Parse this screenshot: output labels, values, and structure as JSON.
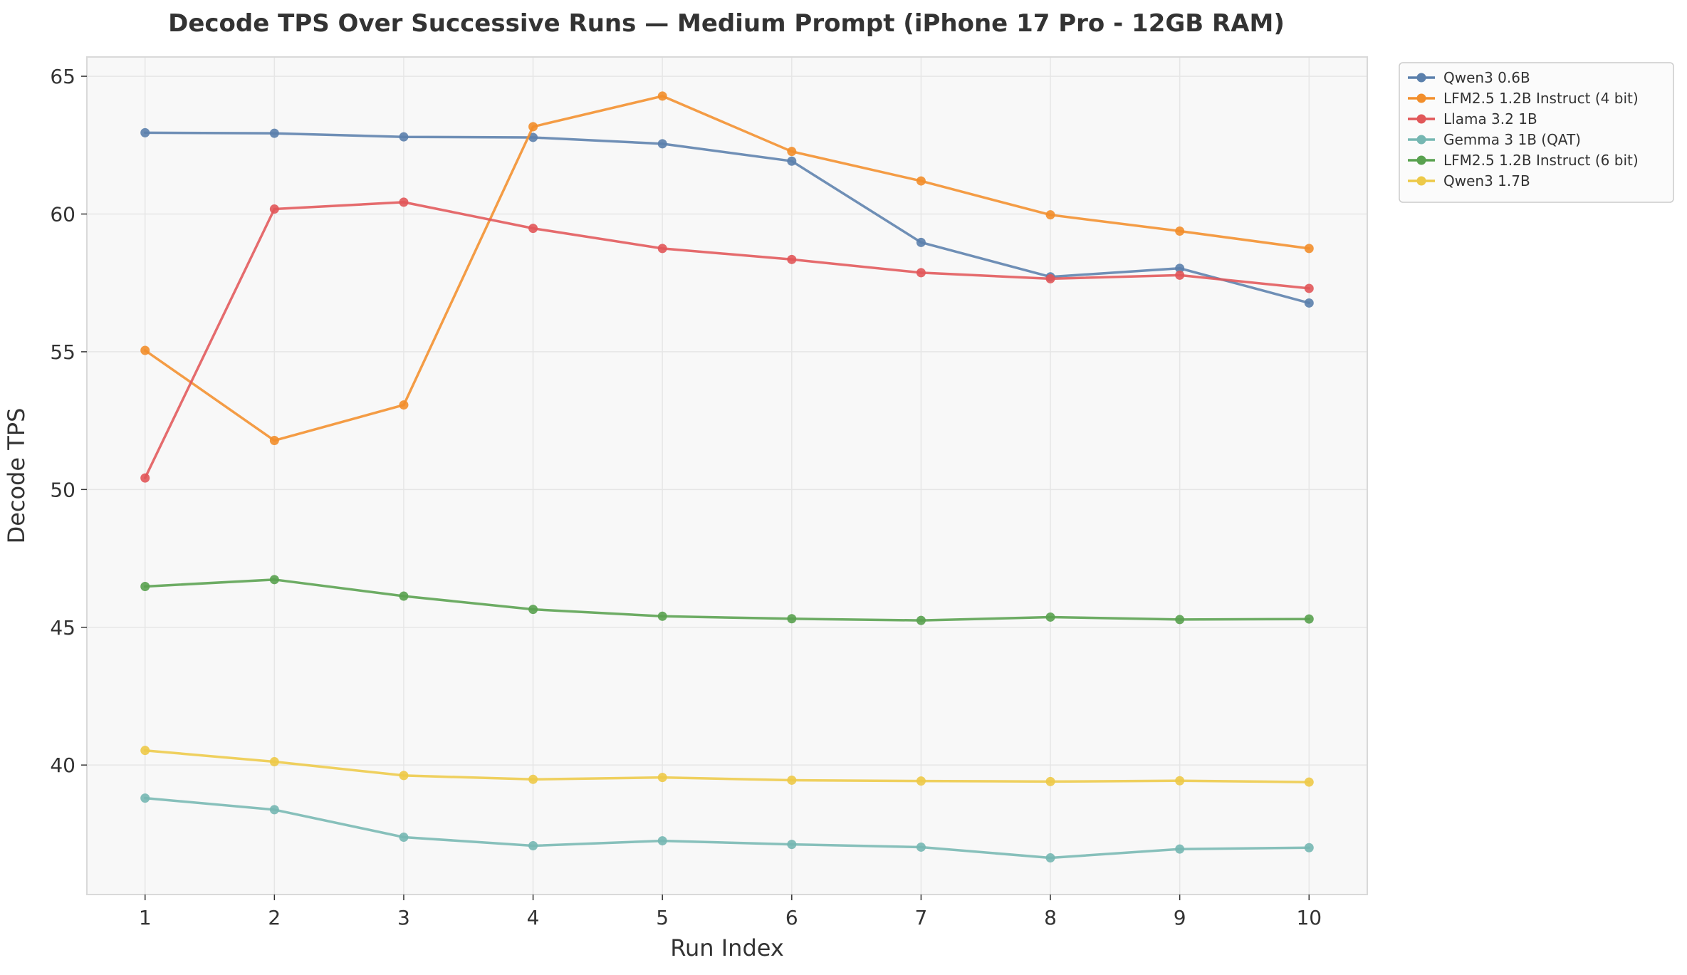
{
  "chart_data": {
    "type": "line",
    "title": "Decode TPS Over Successive Runs — Medium Prompt (iPhone 17 Pro - 12GB RAM)",
    "xlabel": "Run Index",
    "ylabel": "Decode TPS",
    "x": [
      1,
      2,
      3,
      4,
      5,
      6,
      7,
      8,
      9,
      10
    ],
    "x_tick_labels": [
      "1",
      "2",
      "3",
      "4",
      "5",
      "6",
      "7",
      "8",
      "9",
      "10"
    ],
    "y_ticks": [
      40,
      45,
      50,
      55,
      60,
      65
    ],
    "y_tick_labels": [
      "40",
      "45",
      "50",
      "55",
      "60",
      "65"
    ],
    "xlim": [
      0.55,
      10.45
    ],
    "ylim": [
      35.3,
      65.7
    ],
    "grid": true,
    "legend_position": "outside-top-right",
    "series": [
      {
        "name": "Qwen3 0.6B",
        "color": "#5b80ac",
        "values": [
          62.95,
          62.93,
          62.8,
          62.78,
          62.55,
          61.92,
          58.97,
          57.72,
          58.03,
          56.77
        ]
      },
      {
        "name": "LFM2.5 1.2B Instruct (4 bit)",
        "color": "#f28e2b",
        "values": [
          55.05,
          51.78,
          53.07,
          63.17,
          64.28,
          62.27,
          61.2,
          59.97,
          59.38,
          58.75
        ]
      },
      {
        "name": "Llama 3.2 1B",
        "color": "#e15759",
        "values": [
          50.42,
          60.18,
          60.43,
          59.48,
          58.75,
          58.35,
          57.87,
          57.65,
          57.78,
          57.3
        ]
      },
      {
        "name": "Gemma 3 1B (QAT)",
        "color": "#76b7b2",
        "values": [
          38.8,
          38.38,
          37.38,
          37.07,
          37.25,
          37.12,
          37.02,
          36.63,
          36.95,
          37.0
        ]
      },
      {
        "name": "LFM2.5 1.2B Instruct (6 bit)",
        "color": "#59a14f",
        "values": [
          46.48,
          46.73,
          46.13,
          45.65,
          45.4,
          45.31,
          45.25,
          45.37,
          45.28,
          45.3
        ]
      },
      {
        "name": "Qwen3 1.7B",
        "color": "#edc948",
        "values": [
          40.53,
          40.12,
          39.62,
          39.48,
          39.55,
          39.45,
          39.42,
          39.4,
          39.43,
          39.38
        ]
      }
    ]
  },
  "colors": {
    "plot_background": "#f8f8f8",
    "grid": "#e6e6e6",
    "axis_frame": "#d9d9d9",
    "text": "#333333"
  }
}
